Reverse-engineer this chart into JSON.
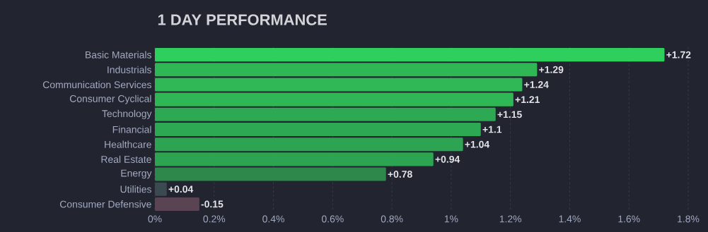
{
  "chart_data": {
    "type": "bar",
    "orientation": "horizontal",
    "title": "1 DAY PERFORMANCE",
    "categories": [
      "Basic Materials",
      "Industrials",
      "Communication Services",
      "Consumer Cyclical",
      "Technology",
      "Financial",
      "Healthcare",
      "Real Estate",
      "Energy",
      "Utilities",
      "Consumer Defensive"
    ],
    "values": [
      1.72,
      1.29,
      1.24,
      1.21,
      1.15,
      1.1,
      1.04,
      0.94,
      0.78,
      0.04,
      -0.15
    ],
    "base": [
      0,
      0,
      0,
      0,
      0,
      0,
      0,
      0,
      0,
      0,
      0.15
    ],
    "value_labels": [
      "+1.72",
      "+1.29",
      "+1.24",
      "+1.21",
      "+1.15",
      "+1.1",
      "+1.04",
      "+0.94",
      "+0.78",
      "+0.04",
      "-0.15"
    ],
    "colors": [
      "#2ecf5c",
      "#2fb655",
      "#2fb855",
      "#2fb655",
      "#2da953",
      "#2da953",
      "#2ca452",
      "#2ca452",
      "#2e874b",
      "#3b4950",
      "#5a4454"
    ],
    "xlim": [
      0,
      1.8
    ],
    "xticks": [
      {
        "value": 0,
        "label": "0%"
      },
      {
        "value": 0.2,
        "label": "0.2%"
      },
      {
        "value": 0.4,
        "label": "0.4%"
      },
      {
        "value": 0.6,
        "label": "0.6%"
      },
      {
        "value": 0.8,
        "label": "0.8%"
      },
      {
        "value": 1,
        "label": "1%"
      },
      {
        "value": 1.2,
        "label": "1.2%"
      },
      {
        "value": 1.4,
        "label": "1.4%"
      },
      {
        "value": 1.6,
        "label": "1.6%"
      },
      {
        "value": 1.8,
        "label": "1.8%"
      }
    ],
    "grid": "x"
  }
}
